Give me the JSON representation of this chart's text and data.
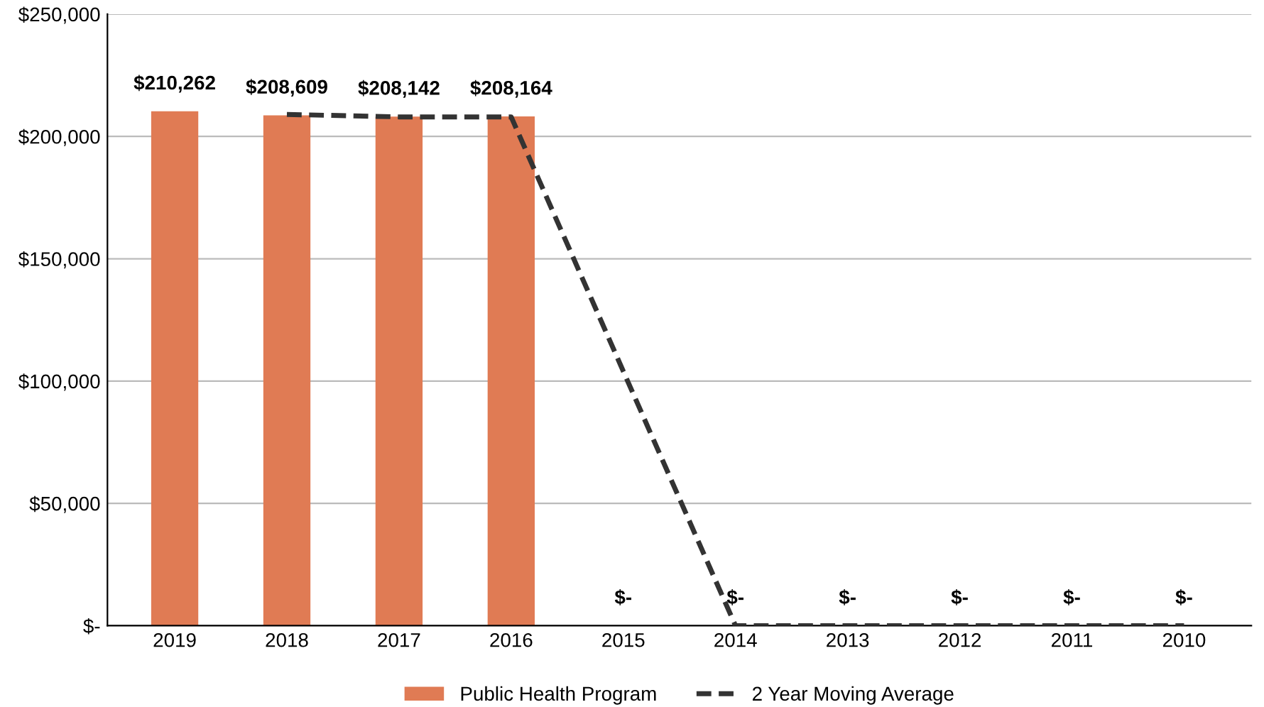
{
  "chart_data": {
    "type": "bar",
    "categories": [
      "2019",
      "2018",
      "2017",
      "2016",
      "2015",
      "2014",
      "2013",
      "2012",
      "2011",
      "2010"
    ],
    "series": [
      {
        "name": "Public Health Program",
        "color": "#e07b54",
        "values": [
          210262,
          208609,
          208142,
          208164,
          0,
          0,
          0,
          0,
          0,
          0
        ],
        "value_labels": [
          "$210,262",
          "$208,609",
          "$208,142",
          "$208,164",
          "$-",
          "$-",
          "$-",
          "$-",
          "$-",
          "$-"
        ]
      },
      {
        "name": "2 Year Moving Average",
        "type": "line",
        "color": "#333333",
        "line_style": "dashed",
        "marker": "none",
        "values": [
          null,
          209000,
          208000,
          208000,
          104000,
          0,
          0,
          0,
          0,
          0
        ]
      }
    ],
    "ylim": [
      0,
      250000
    ],
    "yticks": [
      {
        "value": 0,
        "label": "$-"
      },
      {
        "value": 50000,
        "label": "$50,000"
      },
      {
        "value": 100000,
        "label": "$100,000"
      },
      {
        "value": 150000,
        "label": "$150,000"
      },
      {
        "value": 200000,
        "label": "$200,000"
      },
      {
        "value": 250000,
        "label": "$250,000"
      }
    ],
    "grid": "y",
    "legend": "bottom"
  }
}
